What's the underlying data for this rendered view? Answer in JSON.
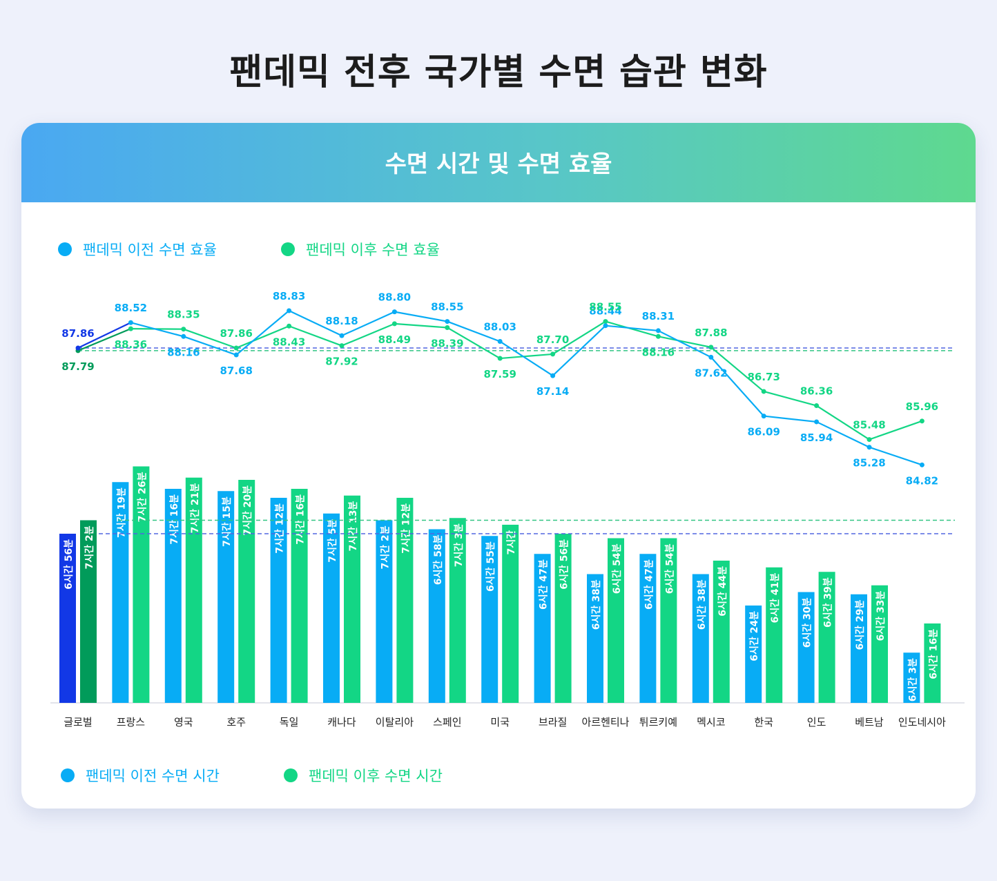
{
  "title": "팬데믹 전후 국가별 수면 습관 변화",
  "card_title": "수면 시간 및 수면 효율",
  "legend_efficiency": {
    "before": "팬데믹 이전 수면 효율",
    "after": "팬데믹 이후 수면 효율"
  },
  "legend_time": {
    "before": "팬데믹 이전 수면 시간",
    "after": "팬데믹 이후 수면 시간"
  },
  "colors": {
    "before": "#08acf5",
    "after": "#13d685",
    "global_before": "#1238e6",
    "global_after": "#019b5a",
    "title": "#1c1c1c"
  },
  "chart_data": [
    {
      "type": "line",
      "title": "수면 효율",
      "categories": [
        "글로벌",
        "프랑스",
        "영국",
        "호주",
        "독일",
        "캐나다",
        "이탈리아",
        "스페인",
        "미국",
        "브라질",
        "아르헨티나",
        "튀르키예",
        "멕시코",
        "한국",
        "인도",
        "베트남",
        "인도네시아"
      ],
      "series": [
        {
          "name": "팬데믹 이전 수면 효율",
          "values": [
            87.86,
            88.52,
            88.16,
            87.68,
            88.83,
            88.18,
            88.8,
            88.55,
            88.03,
            87.14,
            88.44,
            88.31,
            87.62,
            86.09,
            85.94,
            85.28,
            84.82
          ]
        },
        {
          "name": "팬데믹 이후 수면 효율",
          "values": [
            87.79,
            88.36,
            88.35,
            87.86,
            88.43,
            87.92,
            88.49,
            88.39,
            87.59,
            87.7,
            88.55,
            88.16,
            87.88,
            86.73,
            86.36,
            85.48,
            85.96
          ]
        }
      ],
      "labels_before": [
        "87.86",
        "88.52",
        "88.16",
        "87.68",
        "88.83",
        "88.18",
        "88.80",
        "88.55",
        "88.03",
        "87.14",
        "88.44",
        "88.31",
        "87.62",
        "86.09",
        "85.94",
        "85.28",
        "84.82"
      ],
      "labels_after": [
        "87.79",
        "88.36",
        "88.35",
        "87.86",
        "88.43",
        "87.92",
        "88.49",
        "88.39",
        "87.59",
        "87.70",
        "88.55",
        "88.16",
        "87.88",
        "86.73",
        "86.36",
        "85.48",
        "85.96"
      ],
      "reference_lines": {
        "before": 87.86,
        "after": 87.79
      }
    },
    {
      "type": "bar",
      "title": "수면 시간",
      "categories": [
        "글로벌",
        "프랑스",
        "영국",
        "호주",
        "독일",
        "캐나다",
        "이탈리아",
        "스페인",
        "미국",
        "브라질",
        "아르헨티나",
        "튀르키예",
        "멕시코",
        "한국",
        "인도",
        "베트남",
        "인도네시아"
      ],
      "series": [
        {
          "name": "팬데믹 이전 수면 시간",
          "values": [
            416,
            439,
            436,
            435,
            432,
            425,
            422,
            418,
            415,
            407,
            398,
            407,
            398,
            384,
            390,
            389,
            363
          ]
        },
        {
          "name": "팬데믹 이후 수면 시간",
          "values": [
            422,
            446,
            441,
            440,
            436,
            433,
            432,
            423,
            420,
            416,
            414,
            414,
            404,
            401,
            399,
            393,
            376
          ]
        }
      ],
      "labels_before": [
        "6시간 56분",
        "7시간 19분",
        "7시간 16분",
        "7시간 15분",
        "7시간 12분",
        "7시간 5분",
        "7시간 2분",
        "6시간 58분",
        "6시간 55분",
        "6시간 47분",
        "6시간 38분",
        "6시간 47분",
        "6시간 38분",
        "6시간 24분",
        "6시간 30분",
        "6시간 29분",
        "6시간 3분"
      ],
      "labels_after": [
        "7시간 2분",
        "7시간 26분",
        "7시간 21분",
        "7시간 20분",
        "7시간 16분",
        "7시간 13분",
        "7시간 12분",
        "7시간 3분",
        "7시간",
        "6시간 56분",
        "6시간 54분",
        "6시간 54분",
        "6시간 44분",
        "6시간 41분",
        "6시간 39분",
        "6시간 33분",
        "6시간 16분"
      ],
      "unit": "분",
      "reference_lines": {
        "before": 416,
        "after": 422
      }
    }
  ]
}
